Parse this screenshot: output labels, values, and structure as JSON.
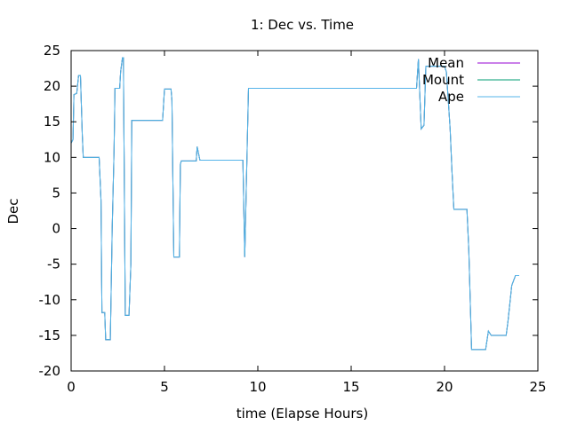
{
  "chart_data": {
    "type": "line",
    "title": "1: Dec vs. Time",
    "xlabel": "time (Elapse Hours)",
    "ylabel": "Dec",
    "xlim": [
      0,
      25
    ],
    "ylim": [
      -20,
      25
    ],
    "xticks": [
      0,
      5,
      10,
      15,
      20,
      25
    ],
    "yticks": [
      -20,
      -15,
      -10,
      -5,
      0,
      5,
      10,
      15,
      20,
      25
    ],
    "grid": false,
    "legend_position": "top-right",
    "series": [
      {
        "name": "Mean",
        "color": "#9400d3",
        "points": [
          [
            0,
            12
          ],
          [
            0.1,
            12.5
          ],
          [
            0.15,
            18.8
          ],
          [
            0.3,
            19
          ],
          [
            0.4,
            21.5
          ],
          [
            0.5,
            21.5
          ],
          [
            0.6,
            13
          ],
          [
            0.65,
            10
          ],
          [
            1.5,
            10
          ],
          [
            1.6,
            4
          ],
          [
            1.65,
            -11.8
          ],
          [
            1.8,
            -11.8
          ],
          [
            1.85,
            -15.6
          ],
          [
            2.1,
            -15.6
          ],
          [
            2.2,
            0
          ],
          [
            2.3,
            11
          ],
          [
            2.35,
            19.7
          ],
          [
            2.6,
            19.7
          ],
          [
            2.65,
            22
          ],
          [
            2.75,
            24
          ],
          [
            2.8,
            24
          ],
          [
            2.9,
            -12.2
          ],
          [
            3.1,
            -12.2
          ],
          [
            3.2,
            -5
          ],
          [
            3.25,
            15.2
          ],
          [
            4.9,
            15.2
          ],
          [
            5.0,
            19.6
          ],
          [
            5.35,
            19.6
          ],
          [
            5.4,
            18
          ],
          [
            5.5,
            -4
          ],
          [
            5.8,
            -4
          ],
          [
            5.85,
            9
          ],
          [
            5.9,
            9.5
          ],
          [
            6.7,
            9.5
          ],
          [
            6.75,
            11.5
          ],
          [
            6.9,
            9.6
          ],
          [
            9.2,
            9.6
          ],
          [
            9.3,
            -4
          ],
          [
            9.35,
            2
          ],
          [
            9.5,
            19.7
          ],
          [
            17.5,
            19.7
          ],
          [
            18.5,
            19.7
          ],
          [
            18.6,
            23.8
          ],
          [
            18.75,
            14
          ],
          [
            18.9,
            14.5
          ],
          [
            19.0,
            22.8
          ],
          [
            20.0,
            22.8
          ],
          [
            20.1,
            22
          ],
          [
            20.3,
            14
          ],
          [
            20.4,
            8
          ],
          [
            20.5,
            2.7
          ],
          [
            21.2,
            2.7
          ],
          [
            21.3,
            -3
          ],
          [
            21.45,
            -17
          ],
          [
            22.2,
            -17
          ],
          [
            22.35,
            -14.4
          ],
          [
            22.5,
            -15
          ],
          [
            23.3,
            -15
          ],
          [
            23.4,
            -13
          ],
          [
            23.6,
            -8
          ],
          [
            23.8,
            -6.6
          ],
          [
            24.0,
            -6.6
          ]
        ]
      },
      {
        "name": "Mount",
        "color": "#009e73",
        "points": [
          [
            0,
            12
          ],
          [
            0.1,
            12.5
          ],
          [
            0.15,
            18.8
          ],
          [
            0.3,
            19
          ],
          [
            0.4,
            21.5
          ],
          [
            0.5,
            21.5
          ],
          [
            0.6,
            13
          ],
          [
            0.65,
            10
          ],
          [
            1.5,
            10
          ],
          [
            1.6,
            4
          ],
          [
            1.65,
            -11.8
          ],
          [
            1.8,
            -11.8
          ],
          [
            1.85,
            -15.6
          ],
          [
            2.1,
            -15.6
          ],
          [
            2.2,
            0
          ],
          [
            2.3,
            11
          ],
          [
            2.35,
            19.7
          ],
          [
            2.6,
            19.7
          ],
          [
            2.65,
            22
          ],
          [
            2.75,
            24
          ],
          [
            2.8,
            24
          ],
          [
            2.9,
            -12.2
          ],
          [
            3.1,
            -12.2
          ],
          [
            3.2,
            -5
          ],
          [
            3.25,
            15.2
          ],
          [
            4.9,
            15.2
          ],
          [
            5.0,
            19.6
          ],
          [
            5.35,
            19.6
          ],
          [
            5.4,
            18
          ],
          [
            5.5,
            -4
          ],
          [
            5.8,
            -4
          ],
          [
            5.85,
            9
          ],
          [
            5.9,
            9.5
          ],
          [
            6.7,
            9.5
          ],
          [
            6.75,
            11.5
          ],
          [
            6.9,
            9.6
          ],
          [
            9.2,
            9.6
          ],
          [
            9.3,
            -4
          ],
          [
            9.35,
            2
          ],
          [
            9.5,
            19.7
          ],
          [
            17.5,
            19.7
          ],
          [
            18.5,
            19.7
          ],
          [
            18.6,
            23.8
          ],
          [
            18.75,
            14
          ],
          [
            18.9,
            14.5
          ],
          [
            19.0,
            22.8
          ],
          [
            20.0,
            22.8
          ],
          [
            20.1,
            22
          ],
          [
            20.3,
            14
          ],
          [
            20.4,
            8
          ],
          [
            20.5,
            2.7
          ],
          [
            21.2,
            2.7
          ],
          [
            21.3,
            -3
          ],
          [
            21.45,
            -17
          ],
          [
            22.2,
            -17
          ],
          [
            22.35,
            -14.4
          ],
          [
            22.5,
            -15
          ],
          [
            23.3,
            -15
          ],
          [
            23.4,
            -13
          ],
          [
            23.6,
            -8
          ],
          [
            23.8,
            -6.6
          ],
          [
            24.0,
            -6.6
          ]
        ]
      },
      {
        "name": "Ape",
        "color": "#56b4e9",
        "points": [
          [
            0,
            12
          ],
          [
            0.1,
            12.5
          ],
          [
            0.15,
            18.8
          ],
          [
            0.3,
            19
          ],
          [
            0.4,
            21.5
          ],
          [
            0.5,
            21.5
          ],
          [
            0.6,
            13
          ],
          [
            0.65,
            10
          ],
          [
            1.5,
            10
          ],
          [
            1.6,
            4
          ],
          [
            1.65,
            -11.8
          ],
          [
            1.8,
            -11.8
          ],
          [
            1.85,
            -15.6
          ],
          [
            2.1,
            -15.6
          ],
          [
            2.2,
            0
          ],
          [
            2.3,
            11
          ],
          [
            2.35,
            19.7
          ],
          [
            2.6,
            19.7
          ],
          [
            2.65,
            22
          ],
          [
            2.75,
            24
          ],
          [
            2.8,
            24
          ],
          [
            2.9,
            -12.2
          ],
          [
            3.1,
            -12.2
          ],
          [
            3.2,
            -5
          ],
          [
            3.25,
            15.2
          ],
          [
            4.9,
            15.2
          ],
          [
            5.0,
            19.6
          ],
          [
            5.35,
            19.6
          ],
          [
            5.4,
            18
          ],
          [
            5.5,
            -4
          ],
          [
            5.8,
            -4
          ],
          [
            5.85,
            9
          ],
          [
            5.9,
            9.5
          ],
          [
            6.7,
            9.5
          ],
          [
            6.75,
            11.5
          ],
          [
            6.9,
            9.6
          ],
          [
            9.2,
            9.6
          ],
          [
            9.3,
            -4
          ],
          [
            9.35,
            2
          ],
          [
            9.5,
            19.7
          ],
          [
            17.5,
            19.7
          ],
          [
            18.5,
            19.7
          ],
          [
            18.6,
            23.8
          ],
          [
            18.75,
            14
          ],
          [
            18.9,
            14.5
          ],
          [
            19.0,
            22.8
          ],
          [
            20.0,
            22.8
          ],
          [
            20.1,
            22
          ],
          [
            20.3,
            14
          ],
          [
            20.4,
            8
          ],
          [
            20.5,
            2.7
          ],
          [
            21.2,
            2.7
          ],
          [
            21.3,
            -3
          ],
          [
            21.45,
            -17
          ],
          [
            22.2,
            -17
          ],
          [
            22.35,
            -14.4
          ],
          [
            22.5,
            -15
          ],
          [
            23.3,
            -15
          ],
          [
            23.4,
            -13
          ],
          [
            23.6,
            -8
          ],
          [
            23.8,
            -6.6
          ],
          [
            24.0,
            -6.6
          ]
        ]
      }
    ]
  }
}
